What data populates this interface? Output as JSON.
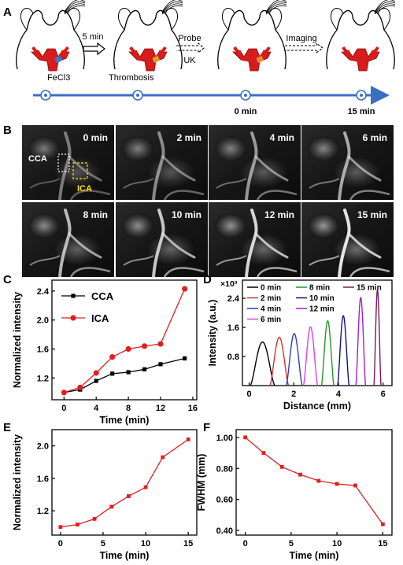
{
  "panels": {
    "A": {
      "label": "A",
      "steps": [
        {
          "arrow_text": "5 min"
        },
        {
          "arrow_top": "Probe",
          "arrow_bottom": "UK"
        },
        {
          "arrow_text": "Imaging"
        }
      ],
      "captions": [
        "FeCl3",
        "Thrombosis"
      ],
      "timeline": [
        {
          "label": ""
        },
        {
          "label": ""
        },
        {
          "label": "0 min"
        },
        {
          "label": "15 min"
        }
      ]
    },
    "B": {
      "label": "B",
      "frames": [
        "0 min",
        "2 min",
        "4 min",
        "6 min",
        "8 min",
        "10 min",
        "12 min",
        "15 min"
      ],
      "roi_labels": {
        "cca": "CCA",
        "ica": "ICA"
      },
      "roi_colors": {
        "cca": "#ffffff",
        "ica": "#ffe600"
      }
    },
    "C": {
      "label": "C"
    },
    "D": {
      "label": "D"
    },
    "E": {
      "label": "E"
    },
    "F": {
      "label": "F"
    }
  },
  "chart_data": [
    {
      "id": "C",
      "type": "line",
      "xlabel": "Time (min)",
      "ylabel": "Normalized intensity",
      "xlim": [
        -1.5,
        16.5
      ],
      "ylim": [
        0.9,
        2.55
      ],
      "xticks": [
        0,
        4,
        8,
        12,
        16
      ],
      "yticks": [
        1.2,
        1.6,
        2.0,
        2.4
      ],
      "legend": "top-left",
      "x": [
        0,
        2,
        4,
        6,
        8,
        10,
        12,
        15
      ],
      "series": [
        {
          "name": "CCA",
          "color": "#000000",
          "marker": "square",
          "values": [
            1.0,
            1.04,
            1.16,
            1.26,
            1.28,
            1.32,
            1.39,
            1.47
          ]
        },
        {
          "name": "ICA",
          "color": "#e02020",
          "marker": "circle",
          "values": [
            1.0,
            1.07,
            1.27,
            1.49,
            1.6,
            1.64,
            1.67,
            2.43
          ]
        }
      ]
    },
    {
      "id": "D",
      "type": "line",
      "xlabel": "Distance (mm)",
      "ylabel": "Intensity (a.u.)",
      "yscale_label": "×10³",
      "xlim": [
        -0.3,
        6.4
      ],
      "ylim": [
        0,
        2.9
      ],
      "xticks": [
        0,
        2,
        4,
        6
      ],
      "yticks": [
        0.8,
        1.6,
        2.4
      ],
      "legend": "top",
      "series": [
        {
          "name": "0 min",
          "color": "#000000",
          "center": 0.6,
          "halfwidth": 0.55,
          "peak": 1.2
        },
        {
          "name": "2 min",
          "color": "#e03030",
          "center": 1.35,
          "halfwidth": 0.42,
          "peak": 1.33
        },
        {
          "name": "4 min",
          "color": "#2a3ad0",
          "center": 2.02,
          "halfwidth": 0.36,
          "peak": 1.43
        },
        {
          "name": "6 min",
          "color": "#e040e0",
          "center": 2.75,
          "halfwidth": 0.32,
          "peak": 1.61
        },
        {
          "name": "8 min",
          "color": "#1f9a2a",
          "center": 3.52,
          "halfwidth": 0.28,
          "peak": 1.78
        },
        {
          "name": "10 min",
          "color": "#101080",
          "center": 4.22,
          "halfwidth": 0.26,
          "peak": 1.92
        },
        {
          "name": "12 min",
          "color": "#a020d0",
          "center": 5.0,
          "halfwidth": 0.22,
          "peak": 2.42
        },
        {
          "name": "15 min",
          "color": "#7a1a5a",
          "center": 5.75,
          "halfwidth": 0.16,
          "peak": 2.63
        }
      ]
    },
    {
      "id": "E",
      "type": "line",
      "xlabel": "Time (min)",
      "ylabel": "Normalized intensity",
      "xlim": [
        -1,
        16
      ],
      "ylim": [
        0.9,
        2.2
      ],
      "xticks": [
        0,
        5,
        10,
        15
      ],
      "yticks": [
        1.2,
        1.6,
        2.0
      ],
      "x": [
        0,
        2,
        4,
        6,
        8,
        10,
        12,
        15
      ],
      "series": [
        {
          "color": "#e02020",
          "marker": "square",
          "values": [
            1.0,
            1.03,
            1.1,
            1.25,
            1.38,
            1.49,
            1.86,
            2.08
          ]
        }
      ]
    },
    {
      "id": "F",
      "type": "line",
      "xlabel": "Time (min)",
      "ylabel": "FWHM (mm)",
      "xlim": [
        -1,
        16
      ],
      "ylim": [
        0.37,
        1.05
      ],
      "xticks": [
        0,
        5,
        10,
        15
      ],
      "yticks": [
        0.4,
        0.6,
        0.8,
        1.0
      ],
      "ytick_format": "fixed2",
      "x": [
        0,
        2,
        4,
        6,
        8,
        10,
        12,
        15
      ],
      "series": [
        {
          "color": "#e02020",
          "marker": "square",
          "values": [
            1.0,
            0.9,
            0.81,
            0.76,
            0.72,
            0.7,
            0.69,
            0.44
          ]
        }
      ]
    }
  ]
}
